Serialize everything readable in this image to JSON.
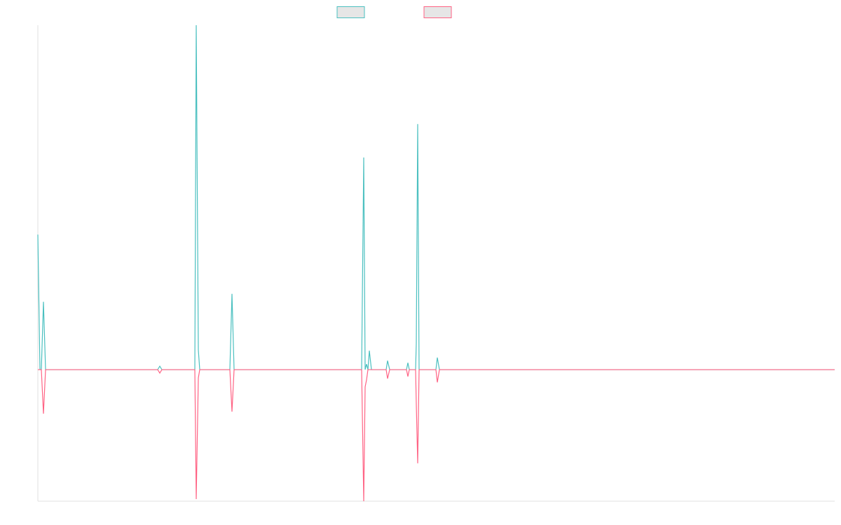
{
  "chart_data": {
    "type": "line",
    "x": [
      0,
      3,
      5,
      8,
      11,
      171,
      174,
      177,
      224,
      226,
      229,
      231,
      274,
      277,
      280,
      462,
      465,
      467,
      469,
      471,
      473,
      476,
      497,
      499,
      502,
      526,
      528,
      530,
      539,
      540,
      542,
      544,
      568,
      570,
      573,
      1137
    ],
    "series": [
      {
        "color": "#4bc0c0",
        "values": [
          39.2,
          0,
          0,
          19.7,
          0,
          0,
          1,
          0,
          0,
          100,
          5.7,
          0,
          0,
          22,
          0,
          0,
          61.6,
          0,
          1.6,
          0,
          5.5,
          0,
          0,
          2.6,
          0,
          0,
          2,
          0,
          0,
          7.7,
          71.3,
          0,
          0,
          3.5,
          0,
          0
        ]
      },
      {
        "color": "#ff6384",
        "values": [
          0,
          0,
          0,
          -12.8,
          0,
          0,
          -1,
          0,
          0,
          -37.6,
          -2.4,
          0,
          0,
          -12.2,
          0,
          0,
          -38.2,
          -5,
          -3,
          0,
          0,
          0,
          0,
          -2.6,
          0,
          0,
          -2,
          0,
          0,
          -10,
          -27.2,
          0,
          0,
          -3.7,
          0,
          0
        ]
      }
    ],
    "xlim": [
      0,
      1137
    ],
    "ylim": [
      -38.2,
      100
    ]
  }
}
